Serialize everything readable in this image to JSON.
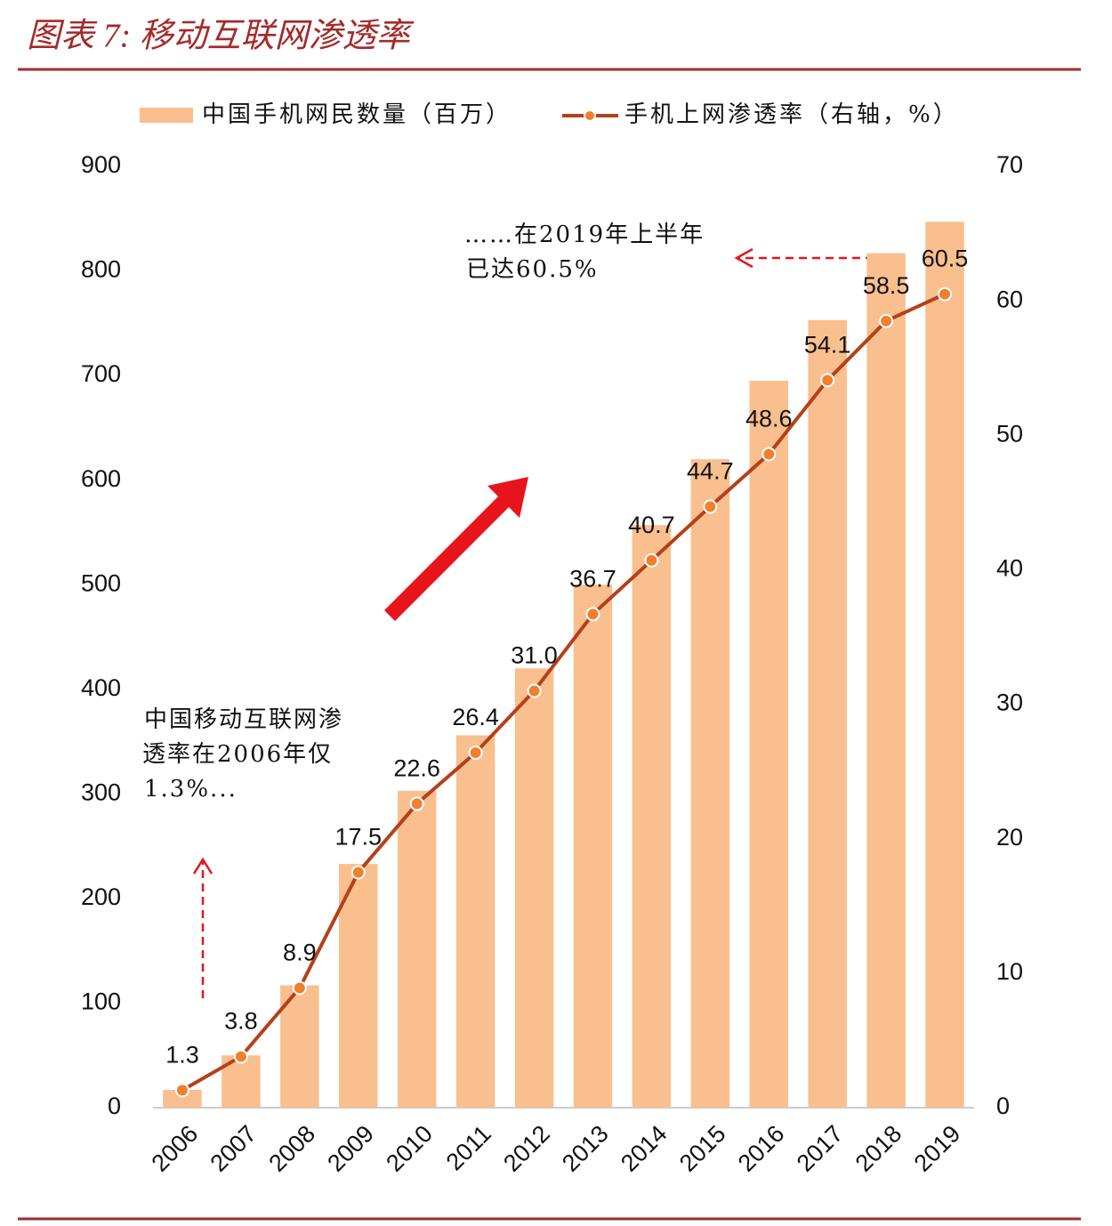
{
  "chart_data": {
    "type": "bar_line",
    "title": "图表 7:  移动互联网渗透率",
    "categories": [
      "2006",
      "2007",
      "2008",
      "2009",
      "2010",
      "2011",
      "2012",
      "2013",
      "2014",
      "2015",
      "2016",
      "2017",
      "2018",
      "2019"
    ],
    "series": [
      {
        "name": "中国手机网民数量（百万）",
        "type": "bar",
        "color": "#f9bf8f",
        "values": [
          17,
          50,
          117,
          233,
          303,
          356,
          420,
          500,
          557,
          620,
          695,
          753,
          817,
          847
        ]
      },
      {
        "name": "手机上网渗透率（右轴，%）",
        "type": "line",
        "axis": "y2",
        "color": "#b5401a",
        "marker_color": "#f08030",
        "values": [
          1.3,
          3.8,
          8.9,
          17.5,
          22.6,
          26.4,
          31.0,
          36.7,
          40.7,
          44.7,
          48.6,
          54.1,
          58.5,
          60.5
        ],
        "value_labels": [
          "1.3",
          "3.8",
          "8.9",
          "17.5",
          "22.6",
          "26.4",
          "31.0",
          "36.7",
          "40.7",
          "44.7",
          "48.6",
          "54.1",
          "58.5",
          "60.5"
        ]
      }
    ],
    "ylim": [
      0,
      900
    ],
    "yticks": [
      0,
      100,
      200,
      300,
      400,
      500,
      600,
      700,
      800,
      900
    ],
    "y2lim": [
      0,
      70
    ],
    "y2ticks": [
      0,
      10,
      20,
      30,
      40,
      50,
      60,
      70
    ],
    "annotations": [
      "……在2019年上半年",
      "已达60.5%",
      "中国移动互联网渗",
      "透率在2006年仅",
      "1.3%..."
    ]
  }
}
